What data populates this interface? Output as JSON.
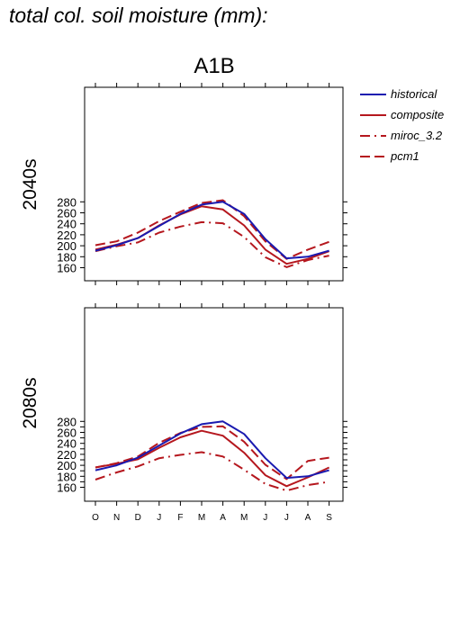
{
  "page_title": "total col. soil moisture (mm):",
  "scenario": "A1B",
  "months": [
    "O",
    "N",
    "D",
    "J",
    "F",
    "M",
    "A",
    "M",
    "J",
    "J",
    "A",
    "S"
  ],
  "legend": [
    {
      "name": "historical",
      "color": "#1a1ab0",
      "dash": "solid"
    },
    {
      "name": "composite",
      "color": "#b5171e",
      "dash": "solid"
    },
    {
      "name": "miroc_3.2",
      "color": "#b5171e",
      "dash": "dashdot"
    },
    {
      "name": "pcm1",
      "color": "#b5171e",
      "dash": "dashed"
    }
  ],
  "chart_data": [
    {
      "type": "line",
      "panel_label": "2040s",
      "categories": [
        "O",
        "N",
        "D",
        "J",
        "F",
        "M",
        "A",
        "M",
        "J",
        "J",
        "A",
        "S"
      ],
      "ylim": [
        150,
        290
      ],
      "yticks": [
        160,
        180,
        200,
        220,
        240,
        260,
        280
      ],
      "series": [
        {
          "name": "historical",
          "values": [
            191,
            201,
            214,
            236,
            258,
            275,
            280,
            258,
            212,
            177,
            180,
            191
          ]
        },
        {
          "name": "composite",
          "values": [
            193,
            202,
            214,
            237,
            257,
            272,
            266,
            237,
            193,
            167,
            176,
            190
          ]
        },
        {
          "name": "miroc_3.2",
          "values": [
            190,
            199,
            206,
            224,
            235,
            243,
            241,
            216,
            179,
            161,
            174,
            182
          ]
        },
        {
          "name": "pcm1",
          "values": [
            201,
            208,
            224,
            245,
            262,
            278,
            283,
            254,
            208,
            176,
            193,
            207
          ]
        }
      ]
    },
    {
      "type": "line",
      "panel_label": "2080s",
      "categories": [
        "O",
        "N",
        "D",
        "J",
        "F",
        "M",
        "A",
        "M",
        "J",
        "J",
        "A",
        "S"
      ],
      "ylim": [
        150,
        290
      ],
      "yticks": [
        160,
        170,
        180,
        190,
        200,
        210,
        220,
        230,
        240,
        250,
        260,
        270,
        280
      ],
      "ytick_labels": [
        160,
        180,
        200,
        220,
        240,
        260,
        280
      ],
      "series": [
        {
          "name": "historical",
          "values": [
            191,
            200,
            214,
            236,
            258,
            275,
            280,
            257,
            213,
            177,
            180,
            191
          ]
        },
        {
          "name": "composite",
          "values": [
            196,
            203,
            211,
            232,
            251,
            263,
            254,
            223,
            182,
            162,
            178,
            196
          ]
        },
        {
          "name": "miroc_3.2",
          "values": [
            174,
            187,
            198,
            213,
            219,
            224,
            216,
            192,
            166,
            154,
            164,
            170
          ]
        },
        {
          "name": "pcm1",
          "values": [
            196,
            204,
            216,
            241,
            259,
            270,
            271,
            243,
            201,
            175,
            208,
            214
          ]
        }
      ]
    }
  ]
}
